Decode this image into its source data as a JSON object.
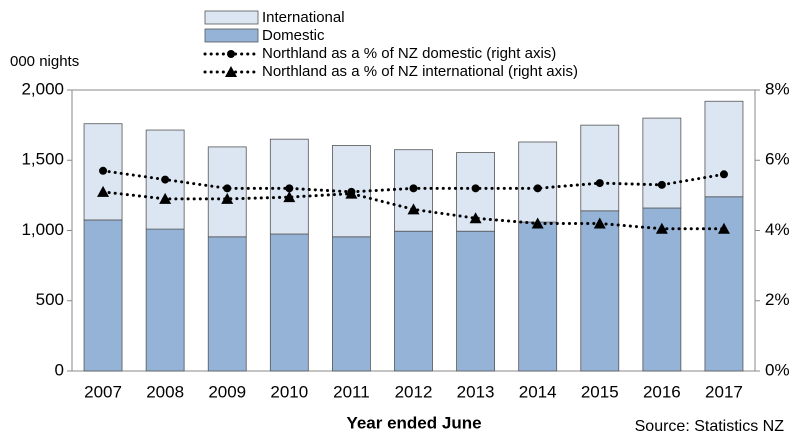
{
  "chart_data": {
    "type": "bar",
    "stacked": true,
    "y_axis_label": "000 nights",
    "x_axis_label": "Year ended June",
    "source": "Source: Statistics NZ",
    "categories": [
      "2007",
      "2008",
      "2009",
      "2010",
      "2011",
      "2012",
      "2013",
      "2014",
      "2015",
      "2016",
      "2017"
    ],
    "series": [
      {
        "name": "International",
        "color": "#dce6f2",
        "values": [
          685,
          705,
          640,
          675,
          650,
          580,
          560,
          570,
          610,
          640,
          680
        ]
      },
      {
        "name": "Domestic",
        "color": "#95b3d7",
        "values": [
          1075,
          1010,
          955,
          975,
          955,
          995,
          995,
          1060,
          1140,
          1160,
          1240
        ]
      },
      {
        "name": "Northland as a % of NZ domestic (right axis)",
        "type": "line",
        "axis": "y2",
        "marker": "circle",
        "color": "#000000",
        "values": [
          5.7,
          5.45,
          5.2,
          5.2,
          5.1,
          5.2,
          5.2,
          5.2,
          5.35,
          5.3,
          5.6
        ]
      },
      {
        "name": "Northland as a % of NZ international (right axis)",
        "type": "line",
        "axis": "y2",
        "marker": "triangle",
        "color": "#000000",
        "values": [
          5.1,
          4.9,
          4.9,
          4.95,
          5.05,
          4.6,
          4.35,
          4.2,
          4.2,
          4.05,
          4.05
        ]
      }
    ],
    "ylim": [
      0,
      2000
    ],
    "yticks": [
      0,
      500,
      {
        "value": 1000,
        "label": "1,000"
      },
      {
        "value": 1500,
        "label": "1,500"
      },
      {
        "value": 2000,
        "label": "2,000"
      }
    ],
    "y2lim": [
      0,
      8
    ],
    "y2ticks": [
      {
        "value": 0,
        "label": "0%"
      },
      {
        "value": 2,
        "label": "2%"
      },
      {
        "value": 4,
        "label": "4%"
      },
      {
        "value": 6,
        "label": "6%"
      },
      {
        "value": 8,
        "label": "8%"
      }
    ],
    "grid": false,
    "legend": "top"
  }
}
